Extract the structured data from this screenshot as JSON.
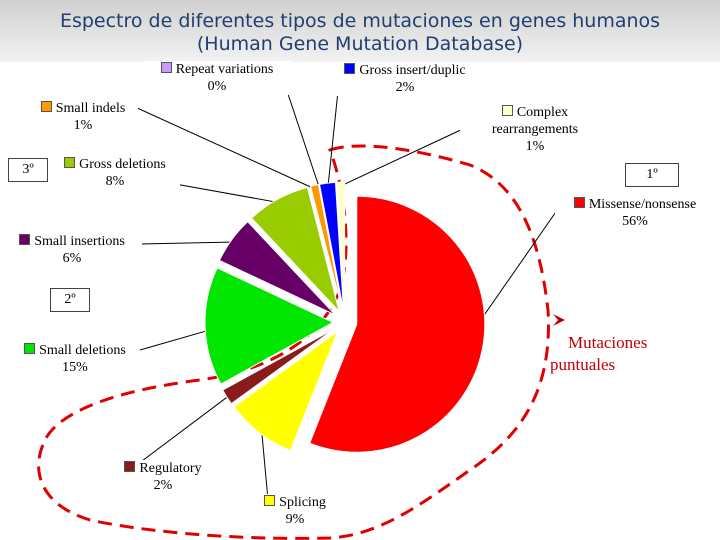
{
  "chart_data": {
    "type": "pie",
    "title": "Espectro de diferentes tipos de mutaciones en genes humanos",
    "subtitle": "(Human Gene Mutation Database)",
    "categories": [
      "Missense/nonsense",
      "Splicing",
      "Regulatory",
      "Small deletions",
      "Small insertions",
      "Gross deletions",
      "Small indels",
      "Repeat variations",
      "Gross insert/duplic",
      "Complex rearrangements"
    ],
    "values": [
      56,
      9,
      2,
      15,
      6,
      8,
      1,
      0,
      2,
      1
    ],
    "value_labels": [
      "56%",
      "9%",
      "2%",
      "15%",
      "6%",
      "8%",
      "1%",
      "0%",
      "2%",
      "1%"
    ],
    "colors": [
      "#ff0000",
      "#ffff00",
      "#8b1a1a",
      "#00e600",
      "#660066",
      "#99cc00",
      "#ff9900",
      "#cc99ff",
      "#0000ff",
      "#ffffcc"
    ],
    "annotations": [
      "1º",
      "2º",
      "3º",
      "Mutaciones puntuales"
    ]
  }
}
